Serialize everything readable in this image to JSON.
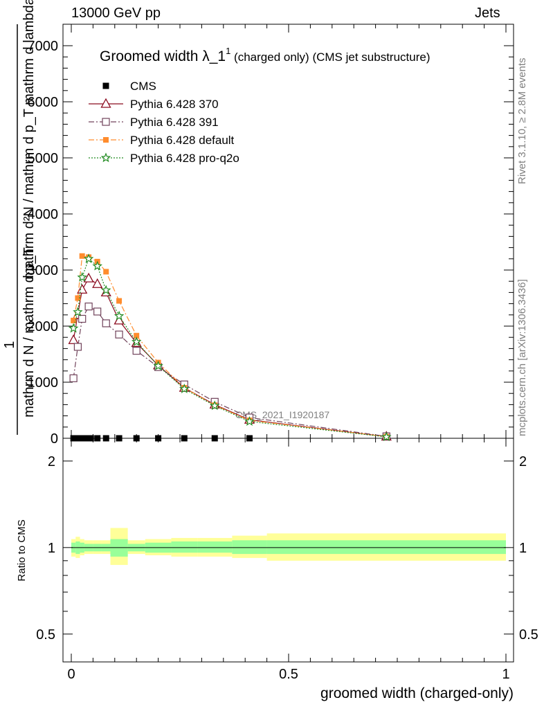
{
  "header": {
    "left": "13000 GeV pp",
    "right": "Jets"
  },
  "side_text": {
    "rivet": "Rivet 3.1.10, ≥ 2.8M events",
    "mcplots": "mcplots.cern.ch [arXiv:1306.3436]"
  },
  "chart_data": [
    {
      "type": "line",
      "title": "Groomed width",
      "title_symbol": "λ_1",
      "title_sup": "1",
      "title_suffix": "(charged only) (CMS jet substructure)",
      "ylabel_top": "1",
      "ylabel_a": "mathrm d N / mathrm d p_T",
      "ylabel_b": "mathrm d²N / mathrm d p_T mathrm d lambda",
      "watermark": "CMS_2021_I1920187",
      "xlim": [
        0,
        1
      ],
      "ylim": [
        0,
        7000
      ],
      "yticks": [
        "0",
        "1000",
        "2000",
        "3000",
        "4000",
        "5000",
        "6000",
        "7000"
      ],
      "legend_position": "top-left",
      "series": [
        {
          "name": "CMS",
          "color": "#000000",
          "marker": "filled-square",
          "line": "none",
          "x": [
            0.005,
            0.015,
            0.025,
            0.035,
            0.045,
            0.06,
            0.08,
            0.11,
            0.15,
            0.2,
            0.26,
            0.33,
            0.41
          ],
          "y": [
            0,
            0,
            0,
            0,
            0,
            0,
            0,
            0,
            0,
            0,
            0,
            0,
            0
          ]
        },
        {
          "name": "Pythia 6.428 370",
          "color": "#8b0a1e",
          "marker": "open-triangle",
          "line": "solid",
          "x": [
            0.005,
            0.015,
            0.025,
            0.04,
            0.06,
            0.08,
            0.11,
            0.15,
            0.2,
            0.26,
            0.33,
            0.41,
            0.725
          ],
          "y": [
            1750,
            2200,
            2650,
            2850,
            2750,
            2600,
            2100,
            1700,
            1300,
            900,
            600,
            330,
            30
          ]
        },
        {
          "name": "Pythia 6.428 391",
          "color": "#70425a",
          "marker": "open-square",
          "line": "dashdot",
          "x": [
            0.005,
            0.015,
            0.025,
            0.04,
            0.06,
            0.08,
            0.11,
            0.15,
            0.2,
            0.26,
            0.33,
            0.41,
            0.725
          ],
          "y": [
            1070,
            1630,
            2130,
            2350,
            2260,
            2050,
            1850,
            1560,
            1270,
            960,
            650,
            370,
            35
          ]
        },
        {
          "name": "Pythia 6.428 default",
          "color": "#ff8c2d",
          "marker": "filled-square",
          "line": "dashdot",
          "x": [
            0.005,
            0.015,
            0.025,
            0.04,
            0.06,
            0.08,
            0.11,
            0.15,
            0.2,
            0.26,
            0.33,
            0.41,
            0.725
          ],
          "y": [
            2100,
            2500,
            3250,
            3230,
            3150,
            2970,
            2450,
            1830,
            1350,
            900,
            590,
            320,
            30
          ]
        },
        {
          "name": "Pythia 6.428 pro-q2o",
          "color": "#228b22",
          "marker": "open-star",
          "line": "dotted",
          "x": [
            0.005,
            0.015,
            0.025,
            0.04,
            0.06,
            0.08,
            0.11,
            0.15,
            0.2,
            0.26,
            0.33,
            0.41,
            0.725
          ],
          "y": [
            1960,
            2250,
            2870,
            3200,
            3070,
            2640,
            2180,
            1720,
            1290,
            880,
            580,
            300,
            25
          ]
        }
      ]
    },
    {
      "type": "area",
      "ylabel": "Ratio to CMS",
      "xlabel": "groomed width (charged-only)",
      "xlim": [
        0,
        1
      ],
      "ylim": [
        0.4,
        2.4
      ],
      "log_y": true,
      "xticks": [
        "0",
        "0.5",
        "1"
      ],
      "yticks": [
        "0.5",
        "1",
        "2"
      ],
      "reference_line": 1,
      "bands": {
        "edges": [
          0,
          0.01,
          0.02,
          0.03,
          0.05,
          0.07,
          0.09,
          0.13,
          0.17,
          0.23,
          0.29,
          0.37,
          0.45,
          1.0
        ],
        "yellow_low": [
          0.93,
          0.92,
          0.94,
          0.95,
          0.95,
          0.95,
          0.87,
          0.95,
          0.94,
          0.93,
          0.93,
          0.92,
          0.9
        ],
        "yellow_high": [
          1.07,
          1.09,
          1.07,
          1.06,
          1.06,
          1.06,
          1.17,
          1.06,
          1.07,
          1.08,
          1.08,
          1.1,
          1.12
        ],
        "green_low": [
          0.96,
          0.95,
          0.96,
          0.97,
          0.97,
          0.97,
          0.93,
          0.97,
          0.96,
          0.96,
          0.96,
          0.95,
          0.95
        ],
        "green_high": [
          1.04,
          1.05,
          1.04,
          1.03,
          1.03,
          1.03,
          1.07,
          1.03,
          1.04,
          1.05,
          1.05,
          1.06,
          1.06
        ]
      }
    }
  ]
}
